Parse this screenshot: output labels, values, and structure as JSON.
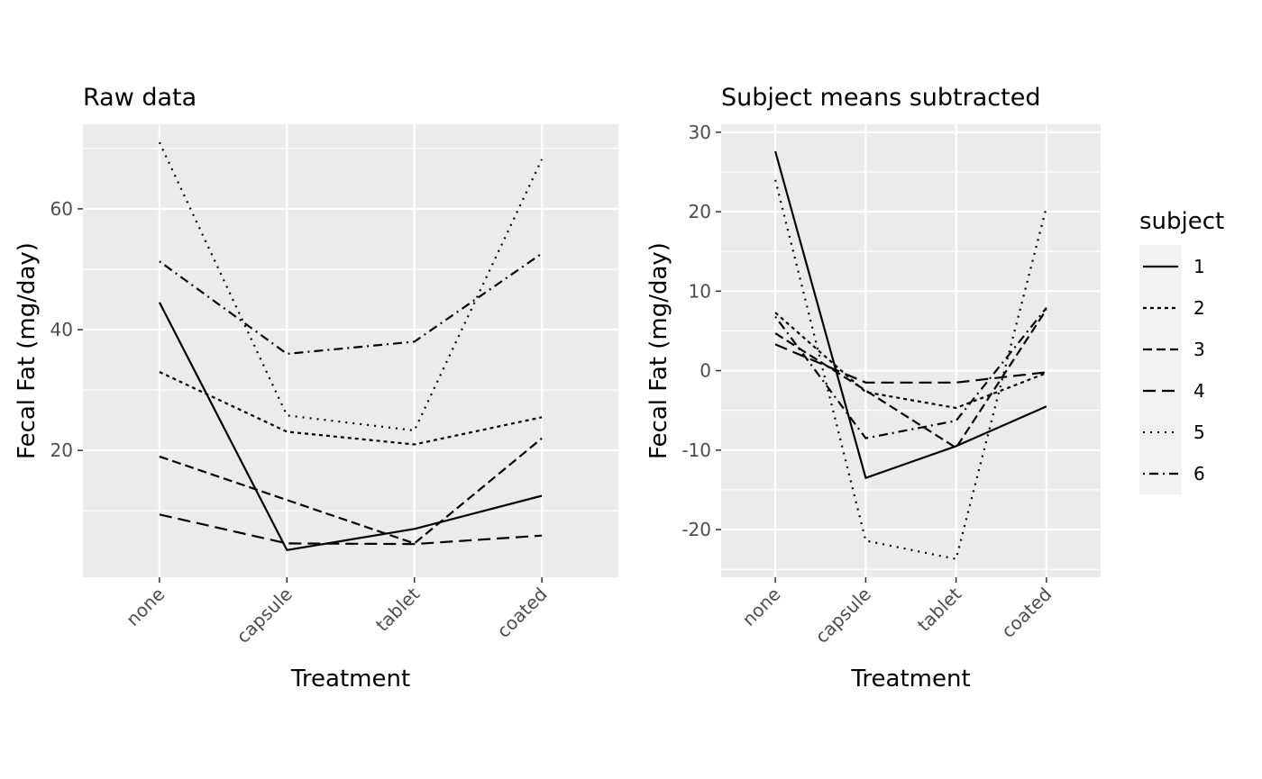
{
  "chart_data": [
    {
      "type": "line",
      "title": "Raw data",
      "xlabel": "Treatment",
      "ylabel": "Fecal Fat (mg/day)",
      "categories": [
        "none",
        "capsule",
        "tablet",
        "coated"
      ],
      "ylim": [
        -1,
        74
      ],
      "yticks": [
        20,
        40,
        60
      ],
      "grid": true,
      "series": [
        {
          "name": "1",
          "values": [
            44.5,
            3.5,
            7.0,
            12.5
          ]
        },
        {
          "name": "2",
          "values": [
            33.0,
            23.1,
            21.0,
            25.5
          ]
        },
        {
          "name": "3",
          "values": [
            19.0,
            11.8,
            4.6,
            22.0
          ]
        },
        {
          "name": "4",
          "values": [
            9.4,
            4.6,
            4.5,
            5.9
          ]
        },
        {
          "name": "5",
          "values": [
            71.0,
            25.8,
            23.3,
            68.2
          ]
        },
        {
          "name": "6",
          "values": [
            51.3,
            36.0,
            38.0,
            52.6
          ]
        }
      ]
    },
    {
      "type": "line",
      "title": "Subject means subtracted",
      "xlabel": "Treatment",
      "ylabel": "Fecal Fat (mg/day)",
      "categories": [
        "none",
        "capsule",
        "tablet",
        "coated"
      ],
      "ylim": [
        -26,
        31
      ],
      "yticks": [
        -20,
        -10,
        0,
        10,
        20,
        30
      ],
      "grid": true,
      "series": [
        {
          "name": "1",
          "values": [
            27.6,
            -13.5,
            -9.5,
            -4.5
          ]
        },
        {
          "name": "2",
          "values": [
            7.3,
            -2.7,
            -4.7,
            -0.3
          ]
        },
        {
          "name": "3",
          "values": [
            4.7,
            -2.5,
            -9.7,
            7.7
          ]
        },
        {
          "name": "4",
          "values": [
            3.3,
            -1.5,
            -1.5,
            -0.2
          ]
        },
        {
          "name": "5",
          "values": [
            24.0,
            -21.4,
            -23.7,
            20.6
          ]
        },
        {
          "name": "6",
          "values": [
            6.8,
            -8.5,
            -6.3,
            7.9
          ]
        }
      ]
    }
  ],
  "legend": {
    "title": "subject",
    "position": "right",
    "items": [
      {
        "label": "1",
        "dash": "solid"
      },
      {
        "label": "2",
        "dash": "dashed-short"
      },
      {
        "label": "3",
        "dash": "dashed"
      },
      {
        "label": "4",
        "dash": "longdash"
      },
      {
        "label": "5",
        "dash": "dotted"
      },
      {
        "label": "6",
        "dash": "dotdash"
      }
    ]
  },
  "colors": {
    "panel_background": "#ebebeb",
    "grid": "#ffffff",
    "line": "#000000",
    "tick_text": "#4d4d4d"
  }
}
